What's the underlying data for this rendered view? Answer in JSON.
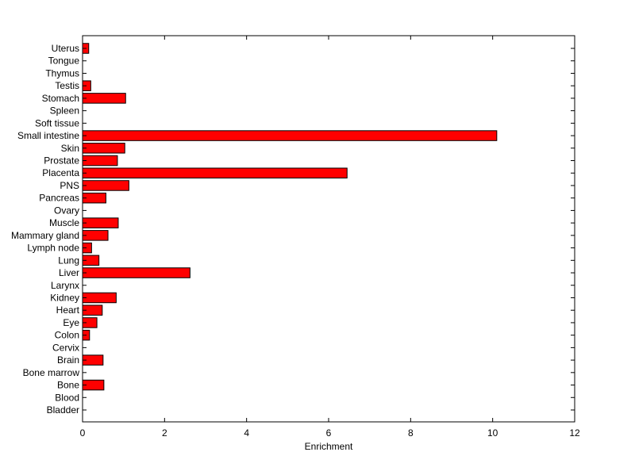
{
  "chart_data": {
    "type": "bar",
    "orientation": "horizontal",
    "title": "",
    "xlabel": "Enrichment",
    "ylabel": "",
    "xlim": [
      0,
      12
    ],
    "xticks": [
      0,
      2,
      4,
      6,
      8,
      10,
      12
    ],
    "grid": false,
    "legend": "none",
    "bar_color": "#ff0000",
    "edge_color": "#000000",
    "categories": [
      "Uterus",
      "Tongue",
      "Thymus",
      "Testis",
      "Stomach",
      "Spleen",
      "Soft tissue",
      "Small intestine",
      "Skin",
      "Prostate",
      "Placenta",
      "PNS",
      "Pancreas",
      "Ovary",
      "Muscle",
      "Mammary gland",
      "Lymph node",
      "Lung",
      "Liver",
      "Larynx",
      "Kidney",
      "Heart",
      "Eye",
      "Colon",
      "Cervix",
      "Brain",
      "Bone marrow",
      "Bone",
      "Blood",
      "Bladder"
    ],
    "values": [
      0.15,
      0,
      0,
      0.2,
      1.05,
      0,
      0,
      10.1,
      1.03,
      0.85,
      6.45,
      1.13,
      0.57,
      0,
      0.87,
      0.62,
      0.22,
      0.4,
      2.62,
      0,
      0.82,
      0.48,
      0.35,
      0.17,
      0,
      0.5,
      0,
      0.52,
      0,
      0
    ]
  }
}
